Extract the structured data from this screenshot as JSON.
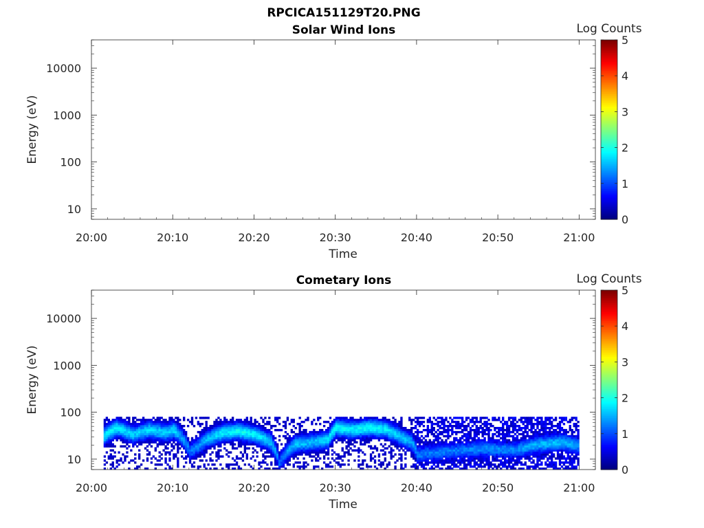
{
  "figure": {
    "title": "RPCICA151129T20.PNG"
  },
  "chart_data": [
    {
      "type": "heatmap",
      "title": "Solar Wind Ions",
      "xlabel": "Time",
      "ylabel": "Energy (eV)",
      "x_ticks": [
        "20:00",
        "20:10",
        "20:20",
        "20:30",
        "20:40",
        "20:50",
        "21:00"
      ],
      "xlim_minutes": [
        0,
        62
      ],
      "y_scale": "log",
      "y_ticks": [
        10,
        100,
        1000,
        10000
      ],
      "y_tick_labels": [
        "10",
        "100",
        "1000",
        "10000"
      ],
      "ylim": [
        6,
        40000
      ],
      "colorbar": {
        "label": "Log Counts",
        "min": 0,
        "max": 5,
        "ticks": [
          "0",
          "1",
          "2",
          "3",
          "4",
          "5"
        ],
        "colormap": "jet"
      },
      "data": "empty (no counts)"
    },
    {
      "type": "heatmap",
      "title": "Cometary Ions",
      "xlabel": "Time",
      "ylabel": "Energy (eV)",
      "x_ticks": [
        "20:00",
        "20:10",
        "20:20",
        "20:30",
        "20:40",
        "20:50",
        "21:00"
      ],
      "xlim_minutes": [
        0,
        62
      ],
      "y_scale": "log",
      "y_ticks": [
        10,
        100,
        1000,
        10000
      ],
      "y_tick_labels": [
        "10",
        "100",
        "1000",
        "10000"
      ],
      "ylim": [
        6,
        40000
      ],
      "colorbar": {
        "label": "Log Counts",
        "min": 0,
        "max": 5,
        "ticks": [
          "0",
          "1",
          "2",
          "3",
          "4",
          "5"
        ],
        "colormap": "jet"
      },
      "data_extent": {
        "time_min": [
          1.5,
          60
        ],
        "energy_eV": [
          6,
          80
        ]
      },
      "peak_energy_track": {
        "time_min": [
          1.5,
          3,
          5,
          7,
          9,
          10,
          11,
          12,
          13,
          14,
          16,
          18,
          20,
          22,
          23,
          25,
          27,
          29,
          30,
          32,
          34,
          36,
          38,
          39.3,
          40,
          44,
          48,
          52,
          55,
          58,
          60
        ],
        "peak_eV": [
          30,
          45,
          32,
          40,
          35,
          40,
          28,
          14,
          18,
          25,
          35,
          38,
          32,
          22,
          8,
          20,
          22,
          25,
          45,
          40,
          45,
          42,
          28,
          22,
          12,
          14,
          16,
          15,
          20,
          22,
          18
        ],
        "peak_log_counts": [
          1.8,
          1.8,
          1.6,
          1.7,
          1.6,
          1.7,
          1.4,
          1.2,
          1.3,
          1.5,
          1.8,
          1.9,
          1.8,
          1.6,
          1.1,
          1.6,
          1.5,
          1.7,
          1.9,
          1.8,
          1.9,
          1.8,
          1.6,
          1.5,
          1.2,
          1.2,
          1.3,
          1.3,
          1.5,
          1.6,
          1.3
        ]
      }
    }
  ]
}
